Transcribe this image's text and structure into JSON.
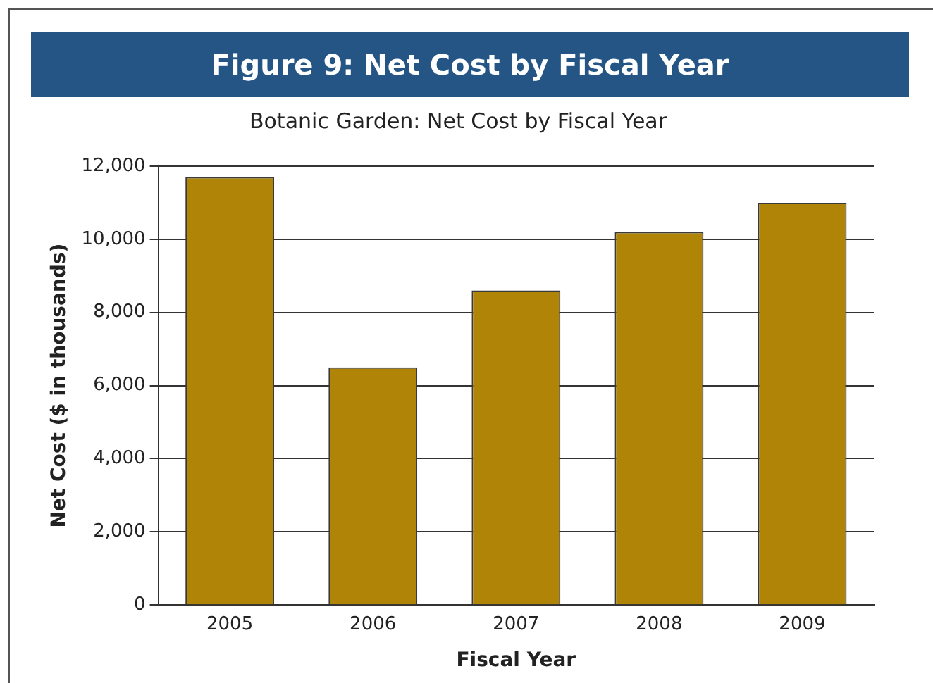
{
  "chart_data": {
    "type": "bar",
    "title": "Figure 9: Net Cost by Fiscal Year",
    "subtitle": "Botanic Garden: Net Cost by Fiscal Year",
    "xlabel": "Fiscal Year",
    "ylabel": "Net Cost ($ in thousands)",
    "categories": [
      "2005",
      "2006",
      "2007",
      "2008",
      "2009"
    ],
    "values": [
      11700,
      6500,
      8600,
      10200,
      11000
    ],
    "color": "#b08407",
    "ylim": [
      0,
      12000
    ],
    "yticks": [
      0,
      {
        "value": 2000,
        "label": "2,000"
      },
      {
        "value": 4000,
        "label": "4,000"
      },
      {
        "value": 6000,
        "label": "6,000"
      },
      {
        "value": 8000,
        "label": "8,000"
      },
      {
        "value": 10000,
        "label": "10,000"
      },
      {
        "value": 12000,
        "label": "12,000"
      }
    ],
    "grid": "y",
    "legend": false
  }
}
